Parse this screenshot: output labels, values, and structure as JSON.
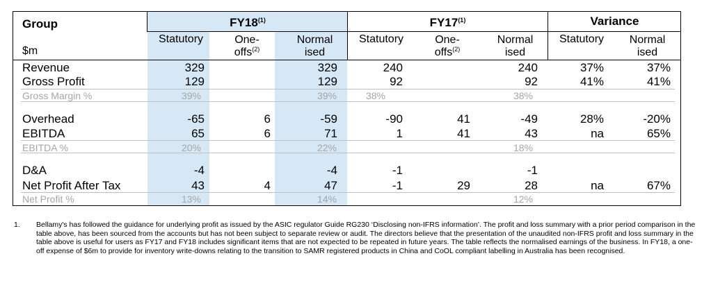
{
  "table": {
    "group_label": "Group",
    "unit_label": "$m",
    "periods": {
      "fy18": {
        "label": "FY18",
        "note": "(1)"
      },
      "fy17": {
        "label": "FY17",
        "note": "(1)"
      },
      "variance": {
        "label": "Variance"
      }
    },
    "subheaders": {
      "statutory": "Statutory",
      "oneoffs_line1": "One-",
      "oneoffs_line2": "offs",
      "oneoffs_note": "(2)",
      "normalised_line1": "Normal",
      "normalised_line2": "ised"
    },
    "rows": {
      "revenue": {
        "label": "Revenue",
        "fy18_stat": "329",
        "fy18_one": "",
        "fy18_norm": "329",
        "fy17_stat": "240",
        "fy17_one": "",
        "fy17_norm": "240",
        "var_stat": "37%",
        "var_norm": "37%"
      },
      "gross_profit": {
        "label": "Gross Profit",
        "fy18_stat": "129",
        "fy18_one": "",
        "fy18_norm": "129",
        "fy17_stat": "92",
        "fy17_one": "",
        "fy17_norm": "92",
        "var_stat": "41%",
        "var_norm": "41%"
      },
      "gross_margin": {
        "label": "Gross Margin %",
        "fy18_stat": "39%",
        "fy18_norm": "39%",
        "fy17_stat": "38%",
        "fy17_norm": "38%"
      },
      "overhead": {
        "label": "Overhead",
        "fy18_stat": "-65",
        "fy18_one": "6",
        "fy18_norm": "-59",
        "fy17_stat": "-90",
        "fy17_one": "41",
        "fy17_norm": "-49",
        "var_stat": "28%",
        "var_norm": "-20%"
      },
      "ebitda": {
        "label": "EBITDA",
        "fy18_stat": "65",
        "fy18_one": "6",
        "fy18_norm": "71",
        "fy17_stat": "1",
        "fy17_one": "41",
        "fy17_norm": "43",
        "var_stat": "na",
        "var_norm": "65%"
      },
      "ebitda_pct": {
        "label": "EBITDA %",
        "fy18_stat": "20%",
        "fy18_norm": "22%",
        "fy17_norm": "18%"
      },
      "da": {
        "label": "D&A",
        "fy18_stat": "-4",
        "fy18_norm": "-4",
        "fy17_stat": "-1",
        "fy17_norm": "-1"
      },
      "npat": {
        "label": "Net Profit After Tax",
        "fy18_stat": "43",
        "fy18_one": "4",
        "fy18_norm": "47",
        "fy17_stat": "-1",
        "fy17_one": "29",
        "fy17_norm": "28",
        "var_stat": "na",
        "var_norm": "67%"
      },
      "np_pct": {
        "label": "Net Profit %",
        "fy18_stat": "13%",
        "fy18_norm": "14%",
        "fy17_norm": "12%"
      }
    }
  },
  "footnote": {
    "marker": "1.",
    "text": "Bellamy's has followed the guidance for underlying profit as issued by the ASIC regulator Guide RG230 ‘Disclosing non-IFRS information’. The profit and loss summary with a prior period comparison in the table above, has been sourced from the accounts but has not been subject to separate review or audit. The directors believe that the presentation of the unaudited non-IFRS profit and loss summary in the table above is useful for users as FY17 and FY18 includes significant items that are not expected to be repeated in future years. The table reflects the normalised earnings of the business. In FY18, a one-off expense of $6m to provide for inventory write-downs relating to the transition to SAMR registered products in China and CoOL compliant labelling in Australia has been recognised."
  },
  "colors": {
    "fy18_shade": "#d6e7f5",
    "muted_text": "#a6a6a6"
  }
}
